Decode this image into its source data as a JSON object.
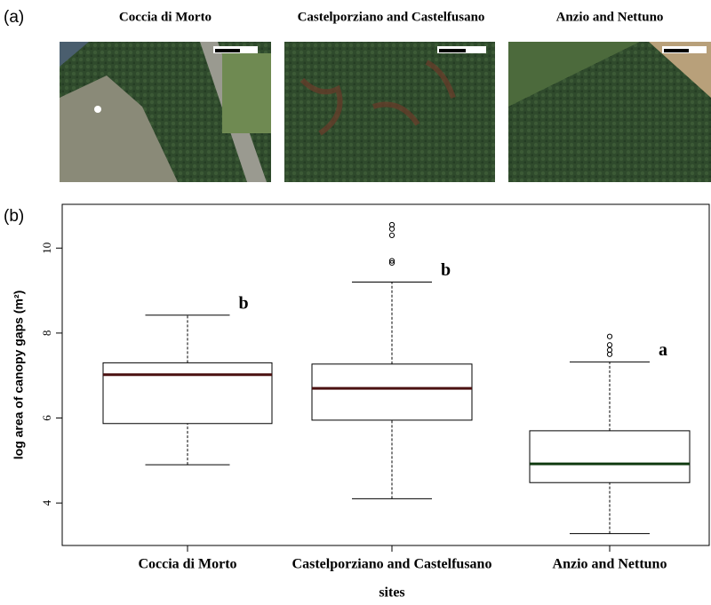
{
  "panel_a": {
    "label": "(a)",
    "titles": [
      "Coccia di Morto",
      "Castelporziano and Castelfusano",
      "Anzio and Nettuno"
    ]
  },
  "chart_data": {
    "type": "box",
    "panel_label": "(b)",
    "x_label": "sites",
    "y_label": "log area of canopy gaps (m²)",
    "categories": [
      "Coccia di Morto",
      "Castelporziano and Castelfusano",
      "Anzio and Nettuno"
    ],
    "boxes": [
      {
        "low": 4.9,
        "q1": 5.87,
        "median": 7.02,
        "q3": 7.3,
        "high": 8.42,
        "outliers": [],
        "letter": "b"
      },
      {
        "low": 4.1,
        "q1": 5.95,
        "median": 6.7,
        "q3": 7.27,
        "high": 9.2,
        "outliers": [
          9.65,
          9.7,
          10.3,
          10.45,
          10.55
        ],
        "letter": "b"
      },
      {
        "low": 3.28,
        "q1": 4.48,
        "median": 4.92,
        "q3": 5.7,
        "high": 7.32,
        "outliers": [
          7.5,
          7.6,
          7.72,
          7.92
        ],
        "letter": "a"
      }
    ],
    "median_colors": [
      "#4a1010",
      "#4a1010",
      "#103a10"
    ],
    "ylim": [
      3,
      11.03
    ],
    "yticks": [
      4,
      6,
      8,
      10
    ]
  }
}
